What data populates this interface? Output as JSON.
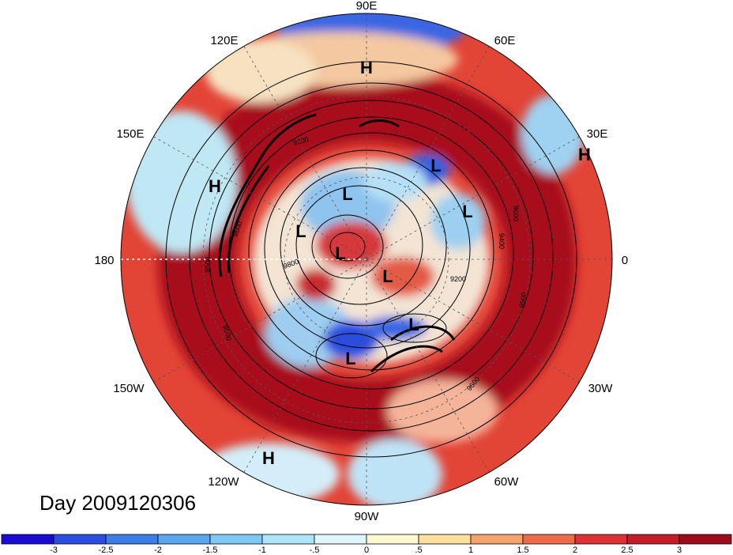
{
  "title": "Day 2009120306",
  "longitude_labels": [
    {
      "id": "90E",
      "text": "90E"
    },
    {
      "id": "60E",
      "text": "60E"
    },
    {
      "id": "30E",
      "text": "30E"
    },
    {
      "id": "0",
      "text": "0"
    },
    {
      "id": "30W",
      "text": "30W"
    },
    {
      "id": "60W",
      "text": "60W"
    },
    {
      "id": "90W",
      "text": "90W"
    },
    {
      "id": "120W",
      "text": "120W"
    },
    {
      "id": "150W",
      "text": "150W"
    },
    {
      "id": "180",
      "text": "180"
    },
    {
      "id": "150E",
      "text": "150E"
    },
    {
      "id": "120E",
      "text": "120E"
    }
  ],
  "pressure_centers": [
    {
      "type": "H",
      "text": "H",
      "region": "north-polar-90E"
    },
    {
      "type": "H",
      "text": "H",
      "region": "east-30E"
    },
    {
      "type": "H",
      "text": "H",
      "region": "west-150E"
    },
    {
      "type": "H",
      "text": "H",
      "region": "south-120W"
    },
    {
      "type": "L",
      "text": "L",
      "region": "central-north"
    },
    {
      "type": "L",
      "text": "L",
      "region": "northeast"
    },
    {
      "type": "L",
      "text": "L",
      "region": "east"
    },
    {
      "type": "L",
      "text": "L",
      "region": "west-central"
    },
    {
      "type": "L",
      "text": "L",
      "region": "center"
    },
    {
      "type": "L",
      "text": "L",
      "region": "center-southeast"
    },
    {
      "type": "L",
      "text": "L",
      "region": "southeast"
    },
    {
      "type": "L",
      "text": "L",
      "region": "south"
    }
  ],
  "contour_labels": [
    "9200",
    "9600",
    "9400",
    "9500",
    "9200",
    "9600",
    "9500",
    "9600",
    "9500",
    "9800"
  ],
  "colorbar": {
    "ticks": [
      "-3",
      "-2.5",
      "-2",
      "-1.5",
      "-1",
      "-.5",
      "0",
      ".5",
      "1",
      "1.5",
      "2",
      "2.5",
      "3"
    ],
    "colors": [
      "#1a0ad2",
      "#2c4ee0",
      "#3d7de8",
      "#5aa6ef",
      "#7ec8f4",
      "#aee6f8",
      "#e0f6fb",
      "#fdf7d2",
      "#fbe0a0",
      "#f4a36d",
      "#ee6a4d",
      "#de3135",
      "#c31d29",
      "#9c0c1a"
    ]
  },
  "colors": {
    "strong_warm": "#b5121b",
    "warm": "#d92f30",
    "cool": "#aee6f8",
    "strong_cool": "#2c4ee0",
    "contour": "#000000"
  }
}
